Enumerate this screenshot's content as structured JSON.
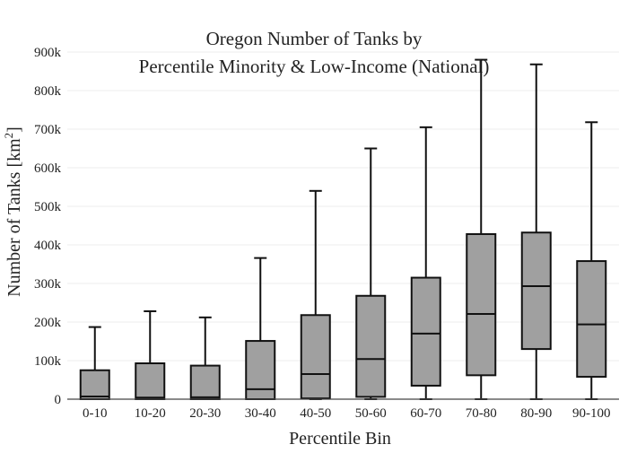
{
  "chart_data": {
    "type": "box",
    "title_lines": [
      "Oregon Number of Tanks by",
      "Percentile Minority & Low-Income (National)"
    ],
    "xlabel": "Percentile Bin",
    "ylabel": "Number of Tanks  [km",
    "ylabel_sup": "2",
    "ylabel_close": "]",
    "ylim": [
      0,
      900000
    ],
    "yticks": [
      0,
      100000,
      200000,
      300000,
      400000,
      500000,
      600000,
      700000,
      800000,
      900000
    ],
    "ytick_labels": [
      "0",
      "100k",
      "200k",
      "300k",
      "400k",
      "500k",
      "600k",
      "700k",
      "800k",
      "900k"
    ],
    "grid": true,
    "categories": [
      "0-10",
      "10-20",
      "20-30",
      "30-40",
      "40-50",
      "50-60",
      "60-70",
      "70-80",
      "80-90",
      "90-100"
    ],
    "boxes": [
      {
        "min": 0,
        "q1": 0,
        "median": 7000,
        "q3": 75000,
        "max": 187000
      },
      {
        "min": 0,
        "q1": 0,
        "median": 4000,
        "q3": 93000,
        "max": 228000
      },
      {
        "min": 0,
        "q1": 0,
        "median": 5000,
        "q3": 87000,
        "max": 212000
      },
      {
        "min": 0,
        "q1": 0,
        "median": 26000,
        "q3": 151000,
        "max": 366000
      },
      {
        "min": 0,
        "q1": 2000,
        "median": 65000,
        "q3": 218000,
        "max": 540000
      },
      {
        "min": 0,
        "q1": 6000,
        "median": 104000,
        "q3": 268000,
        "max": 650000
      },
      {
        "min": 0,
        "q1": 35000,
        "median": 170000,
        "q3": 315000,
        "max": 705000
      },
      {
        "min": 0,
        "q1": 62000,
        "median": 221000,
        "q3": 428000,
        "max": 880000
      },
      {
        "min": 0,
        "q1": 130000,
        "median": 293000,
        "q3": 432000,
        "max": 868000
      },
      {
        "min": 0,
        "q1": 58000,
        "median": 194000,
        "q3": 358000,
        "max": 718000
      }
    ],
    "colors": {
      "box_fill": "#a0a0a0",
      "box_stroke": "#111111",
      "grid": "#eeeeee",
      "axis": "#444444"
    }
  }
}
